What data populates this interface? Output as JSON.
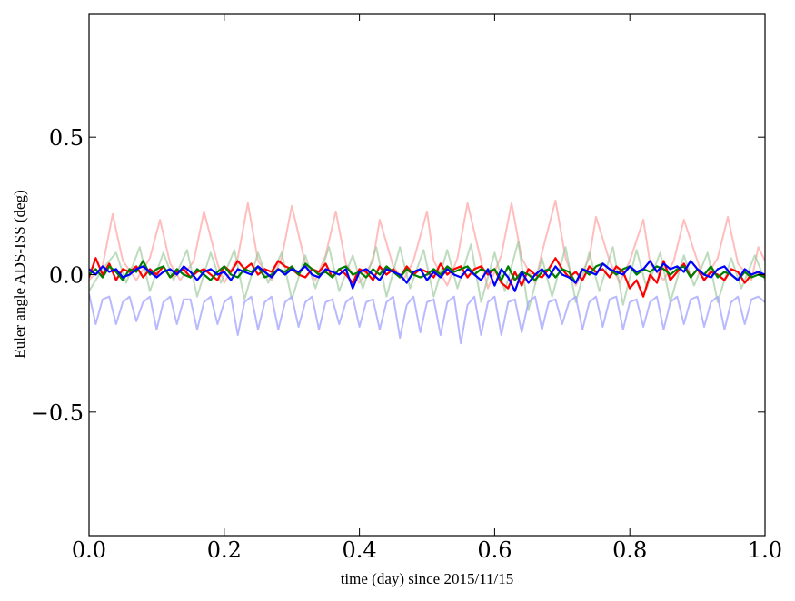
{
  "chart_data": {
    "type": "line",
    "title": "",
    "xlabel": "time (day) since 2015/11/15",
    "ylabel": "Euler angle ADS-ISS (deg)",
    "xlim": [
      0.0,
      1.0
    ],
    "ylim": [
      -0.95,
      0.95
    ],
    "x_ticks": [
      0.0,
      0.2,
      0.4,
      0.6,
      0.8,
      1.0
    ],
    "x_tick_labels": [
      "0.0",
      "0.2",
      "0.4",
      "0.6",
      "0.8",
      "1.0"
    ],
    "y_ticks": [
      -0.5,
      0.0,
      0.5
    ],
    "y_tick_labels": [
      "−0.5",
      "0.0",
      "0.5"
    ],
    "grid": false,
    "legend": "none",
    "colors": {
      "red": "#ff0000",
      "green": "#007f00",
      "blue": "#0000ff",
      "red_faint": "#ff9999",
      "green_faint": "#99c899",
      "blue_faint": "#a8a8ff"
    },
    "series": [
      {
        "color": "#ff9999",
        "opacity": 0.65,
        "x": [
          0.0,
          0.02,
          0.035,
          0.05,
          0.07,
          0.09,
          0.105,
          0.12,
          0.135,
          0.155,
          0.17,
          0.19,
          0.2,
          0.22,
          0.235,
          0.25,
          0.27,
          0.285,
          0.3,
          0.32,
          0.335,
          0.35,
          0.365,
          0.38,
          0.4,
          0.42,
          0.43,
          0.45,
          0.465,
          0.48,
          0.5,
          0.51,
          0.53,
          0.545,
          0.56,
          0.58,
          0.59,
          0.61,
          0.625,
          0.64,
          0.66,
          0.67,
          0.69,
          0.705,
          0.72,
          0.74,
          0.75,
          0.77,
          0.785,
          0.8,
          0.82,
          0.83,
          0.85,
          0.865,
          0.88,
          0.9,
          0.91,
          0.93,
          0.945,
          0.96,
          0.98,
          0.99,
          1.0
        ],
        "y": [
          -0.02,
          0.03,
          0.22,
          0.05,
          -0.02,
          0.06,
          0.2,
          0.04,
          -0.02,
          0.05,
          0.23,
          0.04,
          -0.03,
          0.06,
          0.26,
          0.05,
          -0.02,
          0.06,
          0.25,
          0.04,
          -0.02,
          0.07,
          0.23,
          0.04,
          -0.03,
          0.05,
          0.2,
          0.03,
          -0.02,
          0.05,
          0.23,
          0.05,
          -0.04,
          0.06,
          0.26,
          0.05,
          -0.05,
          0.07,
          0.26,
          0.06,
          -0.03,
          0.08,
          0.27,
          0.06,
          -0.04,
          0.06,
          0.21,
          0.05,
          -0.03,
          0.05,
          0.2,
          0.04,
          -0.02,
          0.05,
          0.2,
          0.05,
          -0.02,
          0.06,
          0.21,
          0.04,
          -0.02,
          0.1,
          0.05
        ]
      },
      {
        "color": "#99c899",
        "opacity": 0.65,
        "x": [
          0.0,
          0.02,
          0.04,
          0.055,
          0.075,
          0.09,
          0.11,
          0.125,
          0.145,
          0.16,
          0.18,
          0.195,
          0.215,
          0.23,
          0.25,
          0.265,
          0.285,
          0.3,
          0.32,
          0.335,
          0.355,
          0.37,
          0.39,
          0.405,
          0.425,
          0.44,
          0.46,
          0.475,
          0.495,
          0.51,
          0.53,
          0.545,
          0.565,
          0.58,
          0.6,
          0.615,
          0.635,
          0.65,
          0.67,
          0.685,
          0.705,
          0.72,
          0.74,
          0.755,
          0.775,
          0.79,
          0.81,
          0.825,
          0.845,
          0.86,
          0.88,
          0.895,
          0.915,
          0.93,
          0.95,
          0.965,
          0.985,
          1.0
        ],
        "y": [
          -0.06,
          0.02,
          0.08,
          -0.03,
          0.1,
          -0.06,
          0.08,
          -0.02,
          0.09,
          -0.08,
          0.08,
          -0.03,
          0.09,
          -0.09,
          0.08,
          -0.03,
          0.08,
          -0.09,
          0.07,
          -0.05,
          0.1,
          -0.06,
          0.07,
          -0.05,
          0.1,
          -0.08,
          0.1,
          -0.05,
          0.09,
          -0.08,
          0.09,
          -0.05,
          0.11,
          -0.1,
          0.08,
          -0.06,
          0.12,
          -0.13,
          0.06,
          -0.08,
          0.1,
          -0.1,
          0.08,
          -0.06,
          0.1,
          -0.11,
          0.09,
          -0.05,
          0.08,
          -0.1,
          0.07,
          -0.04,
          0.08,
          -0.1,
          0.06,
          -0.05,
          0.07,
          -0.02
        ]
      },
      {
        "color": "#a8a8ff",
        "opacity": 0.8,
        "x": [
          0.0,
          0.01,
          0.02,
          0.03,
          0.04,
          0.05,
          0.06,
          0.07,
          0.08,
          0.09,
          0.1,
          0.11,
          0.12,
          0.13,
          0.14,
          0.15,
          0.16,
          0.17,
          0.18,
          0.19,
          0.2,
          0.21,
          0.22,
          0.23,
          0.24,
          0.25,
          0.26,
          0.27,
          0.28,
          0.29,
          0.3,
          0.31,
          0.32,
          0.33,
          0.34,
          0.35,
          0.36,
          0.37,
          0.38,
          0.39,
          0.4,
          0.41,
          0.42,
          0.43,
          0.44,
          0.45,
          0.46,
          0.47,
          0.48,
          0.49,
          0.5,
          0.51,
          0.52,
          0.53,
          0.54,
          0.55,
          0.56,
          0.57,
          0.58,
          0.59,
          0.6,
          0.61,
          0.62,
          0.63,
          0.64,
          0.65,
          0.66,
          0.67,
          0.68,
          0.69,
          0.7,
          0.71,
          0.72,
          0.73,
          0.74,
          0.75,
          0.76,
          0.77,
          0.78,
          0.79,
          0.8,
          0.81,
          0.82,
          0.83,
          0.84,
          0.85,
          0.86,
          0.87,
          0.88,
          0.89,
          0.9,
          0.91,
          0.92,
          0.93,
          0.94,
          0.95,
          0.96,
          0.97,
          0.98,
          0.99,
          1.0
        ],
        "y": [
          -0.07,
          -0.18,
          -0.09,
          -0.08,
          -0.18,
          -0.1,
          -0.08,
          -0.17,
          -0.1,
          -0.08,
          -0.2,
          -0.1,
          -0.08,
          -0.18,
          -0.09,
          -0.09,
          -0.2,
          -0.1,
          -0.08,
          -0.18,
          -0.1,
          -0.08,
          -0.22,
          -0.1,
          -0.08,
          -0.2,
          -0.1,
          -0.08,
          -0.2,
          -0.1,
          -0.08,
          -0.19,
          -0.1,
          -0.08,
          -0.2,
          -0.1,
          -0.09,
          -0.18,
          -0.1,
          -0.08,
          -0.19,
          -0.1,
          -0.09,
          -0.2,
          -0.1,
          -0.08,
          -0.23,
          -0.11,
          -0.08,
          -0.21,
          -0.1,
          -0.09,
          -0.22,
          -0.1,
          -0.08,
          -0.25,
          -0.11,
          -0.08,
          -0.22,
          -0.1,
          -0.08,
          -0.22,
          -0.1,
          -0.09,
          -0.21,
          -0.1,
          -0.08,
          -0.2,
          -0.1,
          -0.09,
          -0.18,
          -0.1,
          -0.08,
          -0.2,
          -0.1,
          -0.08,
          -0.19,
          -0.09,
          -0.08,
          -0.2,
          -0.1,
          -0.09,
          -0.19,
          -0.1,
          -0.08,
          -0.2,
          -0.1,
          -0.08,
          -0.18,
          -0.09,
          -0.08,
          -0.19,
          -0.1,
          -0.08,
          -0.2,
          -0.1,
          -0.08,
          -0.18,
          -0.09,
          -0.08,
          -0.1
        ]
      },
      {
        "color": "#ff0000",
        "opacity": 1,
        "x": [
          0.0,
          0.01,
          0.02,
          0.03,
          0.04,
          0.05,
          0.06,
          0.07,
          0.08,
          0.09,
          0.1,
          0.11,
          0.12,
          0.13,
          0.14,
          0.15,
          0.16,
          0.17,
          0.18,
          0.19,
          0.2,
          0.21,
          0.22,
          0.23,
          0.24,
          0.25,
          0.26,
          0.27,
          0.28,
          0.29,
          0.3,
          0.31,
          0.32,
          0.33,
          0.34,
          0.35,
          0.36,
          0.37,
          0.38,
          0.39,
          0.4,
          0.41,
          0.42,
          0.43,
          0.44,
          0.45,
          0.46,
          0.47,
          0.48,
          0.49,
          0.5,
          0.51,
          0.52,
          0.53,
          0.54,
          0.55,
          0.56,
          0.57,
          0.58,
          0.59,
          0.6,
          0.61,
          0.62,
          0.63,
          0.64,
          0.65,
          0.66,
          0.67,
          0.68,
          0.69,
          0.7,
          0.71,
          0.72,
          0.73,
          0.74,
          0.75,
          0.76,
          0.77,
          0.78,
          0.79,
          0.8,
          0.81,
          0.82,
          0.83,
          0.84,
          0.85,
          0.86,
          0.87,
          0.88,
          0.89,
          0.9,
          0.91,
          0.92,
          0.93,
          0.94,
          0.95,
          0.96,
          0.97,
          0.98,
          0.99,
          1.0
        ],
        "y": [
          -0.01,
          0.06,
          0.0,
          0.04,
          -0.02,
          0.02,
          0.01,
          0.03,
          -0.01,
          0.02,
          0.0,
          0.03,
          -0.01,
          0.01,
          0.02,
          -0.01,
          0.01,
          0.02,
          0.0,
          -0.02,
          0.03,
          0.01,
          0.05,
          0.02,
          0.04,
          0.0,
          0.02,
          0.01,
          0.05,
          0.03,
          0.02,
          0.0,
          -0.01,
          0.02,
          0.01,
          0.04,
          -0.01,
          0.02,
          0.0,
          -0.03,
          0.02,
          0.01,
          -0.02,
          0.03,
          0.0,
          0.02,
          -0.01,
          0.03,
          0.0,
          0.02,
          0.01,
          -0.01,
          0.04,
          0.0,
          0.02,
          0.03,
          -0.01,
          0.02,
          0.03,
          0.0,
          0.02,
          -0.03,
          -0.05,
          0.01,
          -0.04,
          0.02,
          0.0,
          -0.01,
          0.02,
          0.06,
          0.02,
          -0.01,
          0.01,
          -0.02,
          0.03,
          0.01,
          0.02,
          -0.01,
          0.03,
          0.01,
          -0.05,
          -0.02,
          -0.08,
          0.0,
          -0.03,
          0.05,
          -0.02,
          0.01,
          0.04,
          -0.01,
          0.02,
          -0.02,
          0.01,
          0.0,
          -0.02,
          0.02,
          0.01,
          -0.03,
          0.0,
          0.01,
          -0.01
        ]
      },
      {
        "color": "#007f00",
        "opacity": 1,
        "x": [
          0.0,
          0.01,
          0.02,
          0.03,
          0.04,
          0.05,
          0.06,
          0.07,
          0.08,
          0.09,
          0.1,
          0.11,
          0.12,
          0.13,
          0.14,
          0.15,
          0.16,
          0.17,
          0.18,
          0.19,
          0.2,
          0.21,
          0.22,
          0.23,
          0.24,
          0.25,
          0.26,
          0.27,
          0.28,
          0.29,
          0.3,
          0.31,
          0.32,
          0.33,
          0.34,
          0.35,
          0.36,
          0.37,
          0.38,
          0.39,
          0.4,
          0.41,
          0.42,
          0.43,
          0.44,
          0.45,
          0.46,
          0.47,
          0.48,
          0.49,
          0.5,
          0.51,
          0.52,
          0.53,
          0.54,
          0.55,
          0.56,
          0.57,
          0.58,
          0.59,
          0.6,
          0.61,
          0.62,
          0.63,
          0.64,
          0.65,
          0.66,
          0.67,
          0.68,
          0.69,
          0.7,
          0.71,
          0.72,
          0.73,
          0.74,
          0.75,
          0.76,
          0.77,
          0.78,
          0.79,
          0.8,
          0.81,
          0.82,
          0.83,
          0.84,
          0.85,
          0.86,
          0.87,
          0.88,
          0.89,
          0.9,
          0.91,
          0.92,
          0.93,
          0.94,
          0.95,
          0.96,
          0.97,
          0.98,
          0.99,
          1.0
        ],
        "y": [
          0.0,
          0.02,
          -0.01,
          0.03,
          0.01,
          -0.02,
          0.02,
          0.01,
          0.05,
          0.0,
          0.02,
          0.03,
          -0.01,
          0.02,
          0.0,
          -0.01,
          0.02,
          0.0,
          -0.02,
          0.01,
          0.03,
          0.0,
          -0.01,
          0.02,
          0.01,
          0.03,
          -0.01,
          0.0,
          0.02,
          0.01,
          0.03,
          0.0,
          0.04,
          0.02,
          0.0,
          0.01,
          -0.01,
          0.02,
          0.03,
          0.0,
          0.01,
          -0.01,
          0.02,
          0.0,
          0.03,
          0.01,
          -0.01,
          0.02,
          0.0,
          -0.01,
          0.0,
          0.02,
          0.0,
          0.03,
          0.01,
          0.02,
          0.03,
          0.0,
          0.02,
          0.01,
          0.02,
          -0.02,
          0.03,
          -0.02,
          0.01,
          0.0,
          -0.02,
          0.01,
          0.02,
          -0.01,
          0.02,
          0.01,
          -0.03,
          0.02,
          0.0,
          0.03,
          0.04,
          0.02,
          0.0,
          0.02,
          0.03,
          0.0,
          0.02,
          0.01,
          0.03,
          0.02,
          0.0,
          0.02,
          0.03,
          -0.01,
          0.02,
          0.0,
          0.03,
          -0.01,
          0.01,
          0.0,
          -0.02,
          0.01,
          -0.01,
          0.0,
          -0.01
        ]
      },
      {
        "color": "#0000ff",
        "opacity": 1,
        "x": [
          0.0,
          0.01,
          0.02,
          0.03,
          0.04,
          0.05,
          0.06,
          0.07,
          0.08,
          0.09,
          0.1,
          0.11,
          0.12,
          0.13,
          0.14,
          0.15,
          0.16,
          0.17,
          0.18,
          0.19,
          0.2,
          0.21,
          0.22,
          0.23,
          0.24,
          0.25,
          0.26,
          0.27,
          0.28,
          0.29,
          0.3,
          0.31,
          0.32,
          0.33,
          0.34,
          0.35,
          0.36,
          0.37,
          0.38,
          0.39,
          0.4,
          0.41,
          0.42,
          0.43,
          0.44,
          0.45,
          0.46,
          0.47,
          0.48,
          0.49,
          0.5,
          0.51,
          0.52,
          0.53,
          0.54,
          0.55,
          0.56,
          0.57,
          0.58,
          0.59,
          0.6,
          0.61,
          0.62,
          0.63,
          0.64,
          0.65,
          0.66,
          0.67,
          0.68,
          0.69,
          0.7,
          0.71,
          0.72,
          0.73,
          0.74,
          0.75,
          0.76,
          0.77,
          0.78,
          0.79,
          0.8,
          0.81,
          0.82,
          0.83,
          0.84,
          0.85,
          0.86,
          0.87,
          0.88,
          0.89,
          0.9,
          0.91,
          0.92,
          0.93,
          0.94,
          0.95,
          0.96,
          0.97,
          0.98,
          0.99,
          1.0
        ],
        "y": [
          0.02,
          0.0,
          0.03,
          0.01,
          0.02,
          -0.01,
          0.0,
          0.02,
          0.03,
          0.01,
          -0.01,
          0.01,
          0.02,
          0.0,
          0.03,
          0.01,
          -0.02,
          0.01,
          0.02,
          0.0,
          0.01,
          -0.02,
          0.02,
          0.01,
          0.0,
          0.03,
          0.01,
          -0.01,
          0.02,
          0.0,
          0.02,
          0.01,
          0.03,
          0.0,
          -0.01,
          0.02,
          0.01,
          0.0,
          0.02,
          -0.05,
          0.01,
          0.02,
          0.0,
          -0.02,
          0.02,
          0.01,
          0.0,
          -0.03,
          0.01,
          0.02,
          -0.02,
          0.01,
          -0.01,
          0.02,
          0.0,
          -0.01,
          0.02,
          0.0,
          -0.02,
          0.02,
          -0.04,
          0.02,
          -0.01,
          -0.06,
          0.01,
          -0.03,
          0.0,
          0.02,
          -0.01,
          0.03,
          0.0,
          -0.01,
          -0.03,
          0.02,
          0.01,
          0.0,
          0.04,
          0.02,
          0.01,
          0.0,
          0.03,
          0.01,
          0.02,
          0.05,
          0.01,
          0.04,
          0.02,
          0.03,
          0.01,
          0.05,
          0.02,
          0.0,
          -0.01,
          0.02,
          0.03,
          0.0,
          -0.02,
          0.02,
          0.0,
          0.01,
          0.0
        ]
      }
    ]
  }
}
